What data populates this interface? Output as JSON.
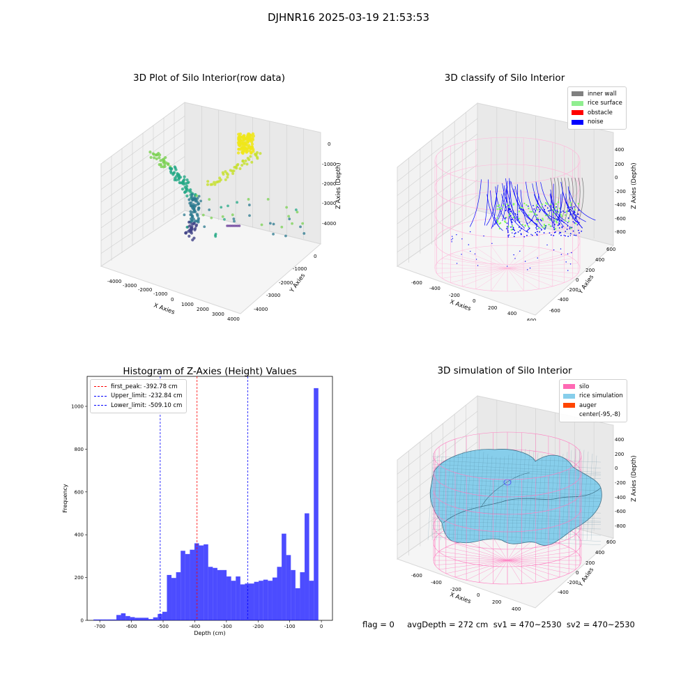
{
  "suptitle": "DJHNR16 2025-03-19 21:53:53",
  "panels": {
    "raw": {
      "title": "3D Plot of Silo Interior(row data)",
      "xlabel": "X Axies",
      "ylabel": "Y Axies",
      "zlabel": "Z Axies (Depth)",
      "xticks": [
        "-4000",
        "-3000",
        "-2000",
        "-1000",
        "0",
        "1000",
        "2000",
        "3000",
        "4000"
      ],
      "yticks": [
        "0",
        "-1000",
        "-2000",
        "-3000",
        "-4000"
      ],
      "zticks": [
        "0",
        "-1000",
        "-2000",
        "-3000",
        "-4000"
      ]
    },
    "classify": {
      "title": "3D classify of Silo Interior",
      "xlabel": "X Axies",
      "ylabel": "Y Axies",
      "zlabel": "Z Axies (Depth)",
      "xticks": [
        "-600",
        "-400",
        "-200",
        "0",
        "200",
        "400",
        "600"
      ],
      "yticks": [
        "600",
        "400",
        "200",
        "0",
        "-200",
        "-400",
        "-600"
      ],
      "zticks": [
        "400",
        "200",
        "0",
        "-200",
        "-400",
        "-600",
        "-800"
      ],
      "legend": [
        {
          "label": "inner wall",
          "color": "#808080"
        },
        {
          "label": "rice surface",
          "color": "#90ee90"
        },
        {
          "label": "obstacle",
          "color": "#ff0000"
        },
        {
          "label": "noise",
          "color": "#0000ff"
        }
      ]
    },
    "simulation": {
      "title": "3D simulation of Silo Interior",
      "xlabel": "X Axies",
      "ylabel": "Y Axies",
      "zlabel": "Z Axies (Depth)",
      "xticks": [
        "-600",
        "-400",
        "-200",
        "0",
        "200",
        "400"
      ],
      "yticks": [
        "600",
        "400",
        "200",
        "0",
        "-200",
        "-400"
      ],
      "zticks": [
        "400",
        "200",
        "0",
        "-200",
        "-400",
        "-600",
        "-800"
      ],
      "legend": [
        {
          "label": "silo",
          "color": "#ff69b4"
        },
        {
          "label": "rice simulation",
          "color": "#87ceeb"
        },
        {
          "label": "auger",
          "color": "#ff4500"
        },
        {
          "label": "center(-95,-8)",
          "color": ""
        }
      ]
    }
  },
  "chart_data": [
    {
      "type": "bar",
      "title": "Histogram of Z-Axies (Height) Values",
      "xlabel": "Depth (cm)",
      "ylabel": "Frequency",
      "color": "#0000ff",
      "xlim": [
        -740,
        35
      ],
      "ylim": [
        0,
        1140
      ],
      "xticks": [
        -700,
        -600,
        -500,
        -400,
        -300,
        -200,
        -100,
        0
      ],
      "yticks": [
        0,
        200,
        400,
        600,
        800,
        1000
      ],
      "bin_width": 14.5,
      "bin_starts": [
        -720,
        -705.5,
        -691,
        -676.5,
        -662,
        -647.5,
        -633,
        -618.5,
        -604,
        -589.5,
        -575,
        -560.5,
        -546,
        -531.5,
        -517,
        -502.5,
        -488,
        -473.5,
        -459,
        -444.5,
        -430,
        -415.5,
        -401,
        -386.5,
        -372,
        -357.5,
        -343,
        -328.5,
        -314,
        -299.5,
        -285,
        -270.5,
        -256,
        -241.5,
        -227,
        -212.5,
        -198,
        -183.5,
        -169,
        -154.5,
        -140,
        -125.5,
        -111,
        -96.5,
        -82,
        -67.5,
        -53,
        -38.5,
        -24,
        -9.5
      ],
      "values": [
        4,
        4,
        4,
        4,
        4,
        25,
        33,
        20,
        15,
        12,
        12,
        12,
        6,
        14,
        30,
        40,
        212,
        198,
        225,
        325,
        310,
        330,
        360,
        350,
        355,
        250,
        245,
        235,
        235,
        205,
        185,
        205,
        168,
        172,
        172,
        180,
        185,
        190,
        185,
        200,
        250,
        405,
        305,
        235,
        150,
        225,
        500,
        185,
        1085,
        0
      ],
      "vlines": [
        {
          "label": "first_peak: -392.78 cm",
          "x": -392.78,
          "color": "#ff0000"
        },
        {
          "label": "Upper_limit: -232.84 cm",
          "x": -232.84,
          "color": "#0000ff"
        },
        {
          "label": "Lower_limit: -509.10 cm",
          "x": -509.1,
          "color": "#0000ff"
        }
      ]
    }
  ],
  "footer": {
    "text": "flag = 0     avgDepth = 272 cm  sv1 = 470~2530  sv2 = 470~2530"
  }
}
